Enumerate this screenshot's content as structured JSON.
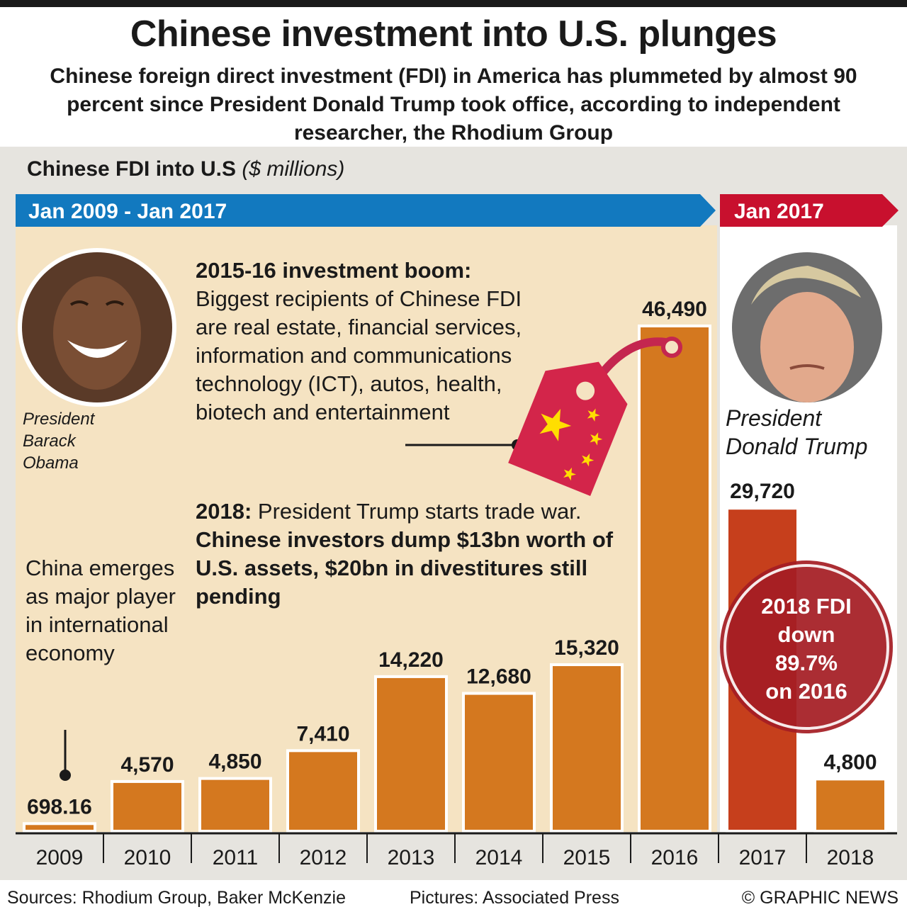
{
  "header": {
    "title": "Chinese investment into U.S. plunges",
    "subtitle": "Chinese foreign direct investment (FDI) in America has plummeted by almost 90 percent since President Donald Trump took office, according to independent researcher, the Rhodium Group"
  },
  "eras": {
    "obama_range": "Jan 2009 - Jan 2017",
    "trump_range": "Jan 2017"
  },
  "portraits": {
    "obama_caption_1": "President",
    "obama_caption_2": "Barack",
    "obama_caption_3": "Obama",
    "trump_caption_1": "President",
    "trump_caption_2": "Donald Trump"
  },
  "annotations": {
    "boom_heading": "2015-16 investment boom:",
    "boom_body": "Biggest recipients of Chinese FDI are real estate, financial services, information and communications technology (ICT), autos, health, biotech and entertainment",
    "war_heading": "2018:",
    "war_body": " President Trump starts trade war. ",
    "war_bold": "Chinese investors dump $13bn worth of U.S. assets, $20bn in divestitures still pending",
    "china_note": "China emerges as major player in international economy",
    "badge_1": "2018 FDI",
    "badge_2": "down",
    "badge_3": "89.7%",
    "badge_4": "on 2016"
  },
  "footer": {
    "sources": "Sources: Rhodium Group, Baker McKenzie",
    "pictures": "Pictures: Associated Press",
    "credit": "© GRAPHIC NEWS"
  },
  "colors": {
    "orange_bar": "#d4781f",
    "red_bar": "#c63f1c",
    "blue_arrow": "#1279bf",
    "red_arrow": "#c8102e",
    "badge": "#a51d24"
  },
  "chart_data": {
    "type": "bar",
    "title": "Chinese FDI into U.S",
    "unit": "($ millions)",
    "categories": [
      "2009",
      "2010",
      "2011",
      "2012",
      "2013",
      "2014",
      "2015",
      "2016",
      "2017",
      "2018"
    ],
    "values": [
      698.16,
      4570,
      4850,
      7410,
      14220,
      12680,
      15320,
      46490,
      29720,
      4800
    ],
    "value_labels": [
      "698.16",
      "4,570",
      "4,850",
      "7,410",
      "14,220",
      "12,680",
      "15,320",
      "46,490",
      "29,720",
      "4,800"
    ],
    "ylim": [
      0,
      46490
    ],
    "grid": false
  }
}
